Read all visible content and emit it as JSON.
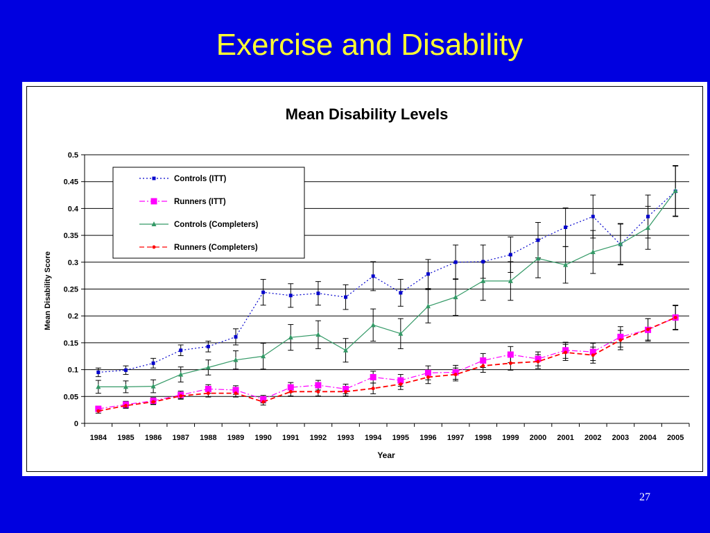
{
  "slide": {
    "title": "Exercise and Disability",
    "page_number": "27"
  },
  "chart_data": {
    "type": "line",
    "title": "Mean Disability Levels",
    "xlabel": "Year",
    "ylabel": "Mean Disability Score",
    "ylim": [
      0,
      0.5
    ],
    "yticks": [
      "0",
      "0.05",
      "0.1",
      "0.15",
      "0.2",
      "0.25",
      "0.3",
      "0.35",
      "0.4",
      "0.45",
      "0.5"
    ],
    "grid": true,
    "legend_position": "top-left",
    "categories": [
      "1984",
      "1985",
      "1986",
      "1987",
      "1988",
      "1989",
      "1990",
      "1991",
      "1992",
      "1993",
      "1994",
      "1995",
      "1996",
      "1997",
      "1998",
      "1999",
      "2000",
      "2001",
      "2002",
      "2003",
      "2004",
      "2005"
    ],
    "series": [
      {
        "name": "Controls (ITT)",
        "color": "#0000cc",
        "dash": "dotted",
        "marker": "square-small",
        "values": [
          0.095,
          0.099,
          0.112,
          0.136,
          0.143,
          0.161,
          0.244,
          0.238,
          0.242,
          0.235,
          0.274,
          0.243,
          0.278,
          0.3,
          0.301,
          0.314,
          0.341,
          0.365,
          0.385,
          0.333,
          0.385,
          0.432
        ],
        "errors": [
          0.008,
          0.008,
          0.009,
          0.01,
          0.01,
          0.015,
          0.024,
          0.022,
          0.022,
          0.023,
          0.027,
          0.025,
          0.027,
          0.032,
          0.031,
          0.033,
          0.033,
          0.036,
          0.04,
          0.038,
          0.04,
          0.047
        ]
      },
      {
        "name": "Runners (ITT)",
        "color": "#ff00ff",
        "dash": "dashdot",
        "marker": "square-large",
        "values": [
          0.027,
          0.035,
          0.042,
          0.053,
          0.064,
          0.062,
          0.045,
          0.067,
          0.071,
          0.064,
          0.086,
          0.08,
          0.094,
          0.095,
          0.117,
          0.128,
          0.12,
          0.136,
          0.133,
          0.161,
          0.174,
          0.197
        ],
        "errors": [
          0.005,
          0.006,
          0.006,
          0.007,
          0.008,
          0.008,
          0.007,
          0.009,
          0.009,
          0.009,
          0.011,
          0.011,
          0.013,
          0.013,
          0.013,
          0.015,
          0.013,
          0.015,
          0.016,
          0.019,
          0.021,
          0.023
        ]
      },
      {
        "name": "Controls (Completers)",
        "color": "#339966",
        "dash": "solid",
        "marker": "triangle",
        "values": [
          0.068,
          0.068,
          0.069,
          0.091,
          0.104,
          0.118,
          0.125,
          0.16,
          0.165,
          0.136,
          0.183,
          0.167,
          0.218,
          0.235,
          0.265,
          0.265,
          0.307,
          0.295,
          0.319,
          0.334,
          0.364,
          0.433
        ],
        "errors": [
          0.012,
          0.011,
          0.012,
          0.014,
          0.014,
          0.017,
          0.024,
          0.024,
          0.026,
          0.022,
          0.03,
          0.028,
          0.031,
          0.034,
          0.036,
          0.036,
          0.036,
          0.034,
          0.04,
          0.038,
          0.04,
          0.047
        ]
      },
      {
        "name": "Runners (Completers)",
        "color": "#ff0000",
        "dash": "dashed",
        "marker": "circle-small",
        "values": [
          0.023,
          0.033,
          0.04,
          0.051,
          0.056,
          0.056,
          0.04,
          0.059,
          0.059,
          0.059,
          0.065,
          0.073,
          0.086,
          0.091,
          0.107,
          0.112,
          0.115,
          0.132,
          0.127,
          0.155,
          0.175,
          0.197
        ],
        "errors": [
          0.004,
          0.005,
          0.005,
          0.006,
          0.007,
          0.007,
          0.006,
          0.008,
          0.008,
          0.008,
          0.01,
          0.01,
          0.012,
          0.012,
          0.012,
          0.013,
          0.013,
          0.015,
          0.015,
          0.018,
          0.02,
          0.022
        ]
      }
    ]
  }
}
